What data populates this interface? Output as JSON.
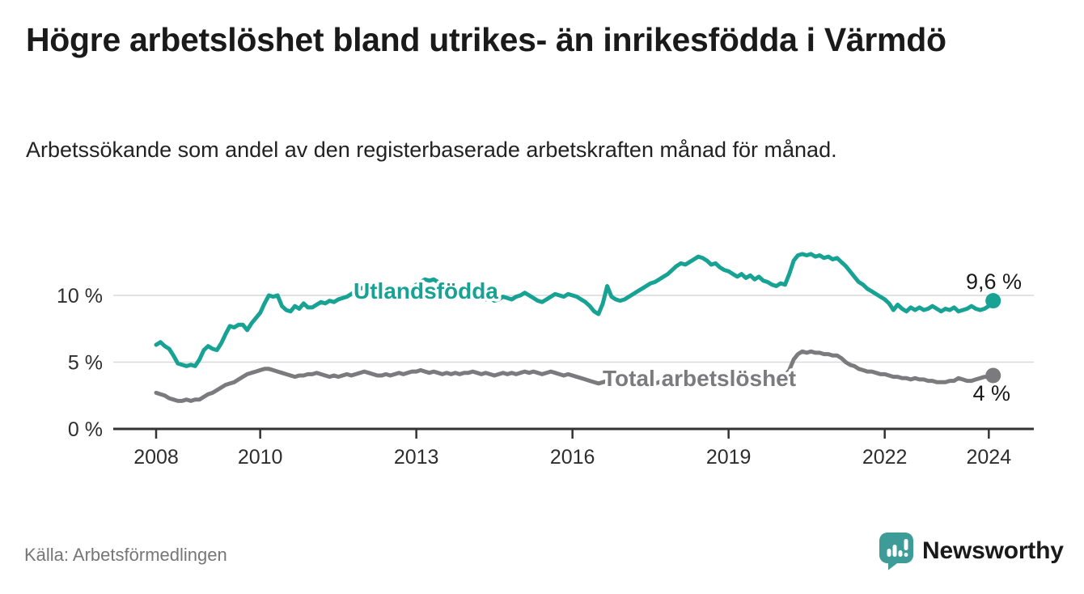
{
  "title": "Högre arbetslöshet bland utrikes- än inrikesfödda i Värmdö",
  "subtitle": "Arbetssökande som andel av den registerbaserade arbetskraften månad för månad.",
  "source": "Källa: Arbetsförmedlingen",
  "branding": {
    "logo_text": "Newsworthy",
    "logo_icon": "bar-chart-speech-bubble",
    "brand_color": "#3d9c98"
  },
  "colors": {
    "foreign_born_line": "#17a294",
    "total_line": "#7b7b7e",
    "grid": "#d9d9d9",
    "axis": "#333333",
    "end_label_text": "#1a1a1a",
    "muted_text": "#767676"
  },
  "chart_data": {
    "type": "line",
    "title": "Högre arbetslöshet bland utrikes- än inrikesfödda i Värmdö",
    "subtitle": "Arbetssökande som andel av den registerbaserade arbetskraften månad för månad.",
    "unit": "percent of registered labour force",
    "x_start": "2008-01",
    "x_end": "2024-02",
    "frequency": "monthly",
    "grid": "horizontal",
    "legend_position": "inline-labels",
    "ylim": [
      0,
      14
    ],
    "x_tick_years": [
      2008,
      2010,
      2013,
      2016,
      2019,
      2022,
      2024
    ],
    "y_ticks": [
      {
        "value": 0,
        "label": "0 %"
      },
      {
        "value": 5,
        "label": "5 %"
      },
      {
        "value": 10,
        "label": "10 %"
      }
    ],
    "series": [
      {
        "name": "Utlandsfödda",
        "color": "#17a294",
        "end_value": 9.6,
        "end_label": "9,6 %",
        "values": [
          6.3,
          6.5,
          6.2,
          6.0,
          5.5,
          4.9,
          4.8,
          4.7,
          4.8,
          4.7,
          5.2,
          5.9,
          6.2,
          6.0,
          5.9,
          6.4,
          7.1,
          7.7,
          7.6,
          7.8,
          7.8,
          7.4,
          7.9,
          8.3,
          8.7,
          9.4,
          10.0,
          9.9,
          10.0,
          9.2,
          8.9,
          8.8,
          9.2,
          9.0,
          9.4,
          9.1,
          9.1,
          9.3,
          9.5,
          9.4,
          9.6,
          9.5,
          9.7,
          9.8,
          9.9,
          10.1,
          10.3,
          10.5,
          10.6,
          10.4,
          10.1,
          9.9,
          9.8,
          9.9,
          10.0,
          10.1,
          10.0,
          10.2,
          10.4,
          10.6,
          10.8,
          11.0,
          11.2,
          11.1,
          11.2,
          11.0,
          10.8,
          10.6,
          10.4,
          10.3,
          10.1,
          10.0,
          9.9,
          9.8,
          10.0,
          9.9,
          9.7,
          9.8,
          9.6,
          9.7,
          9.9,
          9.8,
          9.7,
          9.9,
          10.0,
          10.2,
          10.0,
          9.8,
          9.6,
          9.5,
          9.7,
          9.9,
          10.1,
          10.0,
          9.9,
          10.1,
          10.0,
          9.9,
          9.7,
          9.5,
          9.2,
          8.8,
          8.6,
          9.4,
          10.7,
          9.9,
          9.7,
          9.6,
          9.7,
          9.9,
          10.1,
          10.3,
          10.5,
          10.7,
          10.9,
          11.0,
          11.2,
          11.4,
          11.6,
          11.9,
          12.2,
          12.4,
          12.3,
          12.5,
          12.7,
          12.9,
          12.8,
          12.6,
          12.3,
          12.4,
          12.1,
          11.9,
          11.8,
          11.6,
          11.4,
          11.6,
          11.3,
          11.5,
          11.2,
          11.4,
          11.1,
          11.0,
          10.8,
          10.7,
          10.9,
          10.8,
          11.6,
          12.6,
          13.0,
          13.1,
          13.0,
          13.1,
          12.9,
          13.0,
          12.8,
          12.9,
          12.7,
          12.8,
          12.5,
          12.2,
          11.8,
          11.4,
          11.0,
          10.8,
          10.5,
          10.3,
          10.1,
          9.9,
          9.7,
          9.4,
          8.9,
          9.3,
          9.0,
          8.8,
          9.1,
          8.9,
          9.1,
          8.9,
          9.0,
          9.2,
          9.0,
          8.8,
          9.0,
          8.9,
          9.1,
          8.8,
          8.9,
          9.0,
          9.2,
          9.0,
          8.9,
          9.0,
          9.2,
          9.6
        ]
      },
      {
        "name": "Total arbetslöshet",
        "color": "#7b7b7e",
        "end_value": 4.0,
        "end_label": "4 %",
        "values": [
          2.7,
          2.6,
          2.5,
          2.3,
          2.2,
          2.1,
          2.1,
          2.2,
          2.1,
          2.2,
          2.2,
          2.4,
          2.6,
          2.7,
          2.9,
          3.1,
          3.3,
          3.4,
          3.5,
          3.7,
          3.9,
          4.1,
          4.2,
          4.3,
          4.4,
          4.5,
          4.5,
          4.4,
          4.3,
          4.2,
          4.1,
          4.0,
          3.9,
          4.0,
          4.0,
          4.1,
          4.1,
          4.2,
          4.1,
          4.0,
          3.9,
          4.0,
          3.9,
          4.0,
          4.1,
          4.0,
          4.1,
          4.2,
          4.3,
          4.2,
          4.1,
          4.0,
          4.0,
          4.1,
          4.0,
          4.1,
          4.2,
          4.1,
          4.2,
          4.3,
          4.3,
          4.4,
          4.3,
          4.2,
          4.3,
          4.2,
          4.1,
          4.2,
          4.1,
          4.2,
          4.1,
          4.2,
          4.2,
          4.3,
          4.2,
          4.1,
          4.2,
          4.1,
          4.0,
          4.1,
          4.2,
          4.1,
          4.2,
          4.1,
          4.2,
          4.3,
          4.2,
          4.3,
          4.2,
          4.1,
          4.2,
          4.3,
          4.2,
          4.1,
          4.0,
          4.1,
          4.0,
          3.9,
          3.8,
          3.7,
          3.6,
          3.5,
          3.4,
          3.5,
          3.6,
          3.5,
          3.6,
          3.5,
          3.5,
          3.6,
          3.5,
          3.4,
          3.5,
          3.6,
          3.5,
          3.4,
          3.5,
          3.6,
          3.7,
          3.6,
          3.7,
          3.8,
          3.7,
          3.8,
          3.7,
          3.8,
          3.9,
          3.8,
          3.7,
          3.8,
          3.7,
          3.8,
          3.8,
          3.9,
          3.8,
          3.7,
          3.8,
          3.7,
          3.8,
          3.7,
          3.6,
          3.7,
          3.8,
          3.8,
          3.9,
          4.0,
          4.4,
          5.2,
          5.6,
          5.8,
          5.7,
          5.8,
          5.7,
          5.7,
          5.6,
          5.6,
          5.5,
          5.5,
          5.3,
          5.0,
          4.8,
          4.7,
          4.5,
          4.4,
          4.3,
          4.3,
          4.2,
          4.1,
          4.1,
          4.0,
          3.9,
          3.9,
          3.8,
          3.8,
          3.7,
          3.8,
          3.7,
          3.7,
          3.6,
          3.6,
          3.5,
          3.5,
          3.5,
          3.6,
          3.6,
          3.8,
          3.7,
          3.6,
          3.6,
          3.7,
          3.8,
          3.9,
          3.9,
          4.0
        ]
      }
    ]
  }
}
